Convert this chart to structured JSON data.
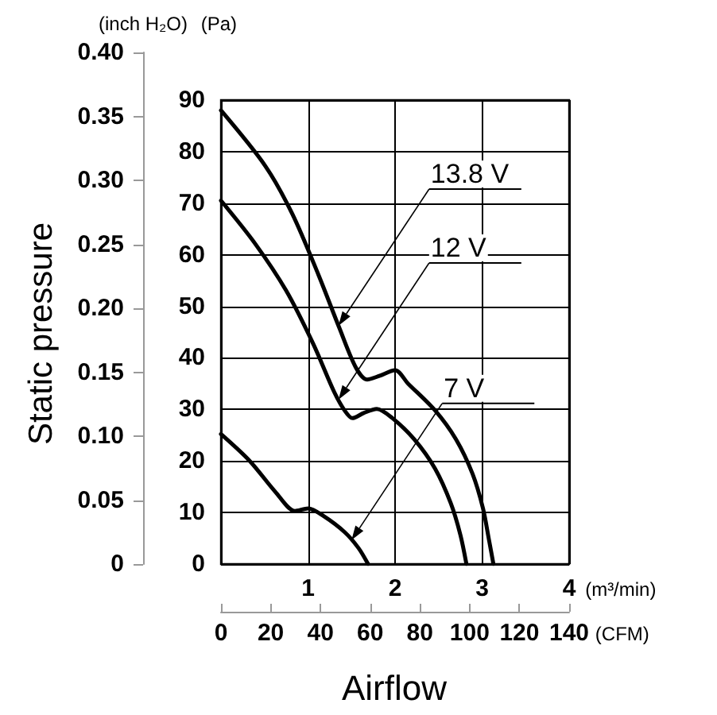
{
  "chart_data": {
    "type": "line",
    "xlabel": "(m³/min)",
    "x2label": "(CFM)",
    "ylabel": "(Pa)",
    "y2label": "(inch H₂O)",
    "xlim": [
      0,
      4
    ],
    "xticks": [
      1,
      2,
      3,
      4
    ],
    "ylim": [
      0,
      90
    ],
    "yticks": [
      0,
      10,
      20,
      30,
      40,
      50,
      60,
      70,
      80,
      90
    ],
    "y2lim": [
      0,
      0.4
    ],
    "y2ticks": [
      0,
      0.05,
      {
        "value": 0.1,
        "label": "0.10"
      },
      0.15,
      {
        "value": 0.2,
        "label": "0.20"
      },
      0.25,
      {
        "value": 0.3,
        "label": "0.30"
      },
      0.35,
      {
        "value": 0.4,
        "label": "0.40"
      }
    ],
    "x2lim": [
      0,
      140
    ],
    "x2ticks": [
      0,
      20,
      40,
      60,
      80,
      100,
      120,
      140
    ],
    "grid": true,
    "line_style": "solid",
    "series": [
      {
        "name": "13.8 V",
        "color": "#000000",
        "x": [
          0,
          0.51,
          0.82,
          1.12,
          1.36,
          1.55,
          1.68,
          1.82,
          2.0,
          2.15,
          2.46,
          2.7,
          2.89,
          3.01,
          3.08,
          3.13
        ],
        "values": [
          88,
          77.2,
          67.9,
          56.1,
          45.8,
          38.1,
          35.8,
          36.5,
          37.6,
          35,
          29.8,
          24.2,
          17.5,
          10.8,
          4.6,
          0
        ]
      },
      {
        "name": "12 V",
        "color": "#000000",
        "x": [
          0,
          0.39,
          0.75,
          1.06,
          1.3,
          1.42,
          1.51,
          1.64,
          1.79,
          1.97,
          2.22,
          2.46,
          2.64,
          2.75,
          2.82
        ],
        "values": [
          70.5,
          62.2,
          53,
          42.7,
          33.4,
          29.8,
          28.3,
          29.3,
          30.1,
          28.3,
          24.2,
          18.5,
          11.8,
          5.7,
          0
        ]
      },
      {
        "name": "7 V",
        "color": "#000000",
        "x": [
          0,
          0.33,
          0.63,
          0.85,
          1.0,
          1.18,
          1.42,
          1.58,
          1.69
        ],
        "values": [
          25.2,
          20,
          13.9,
          10.3,
          10.8,
          9.3,
          6.2,
          3.1,
          0
        ]
      }
    ],
    "annotations": [
      "Static pressure",
      "Airflow"
    ]
  }
}
